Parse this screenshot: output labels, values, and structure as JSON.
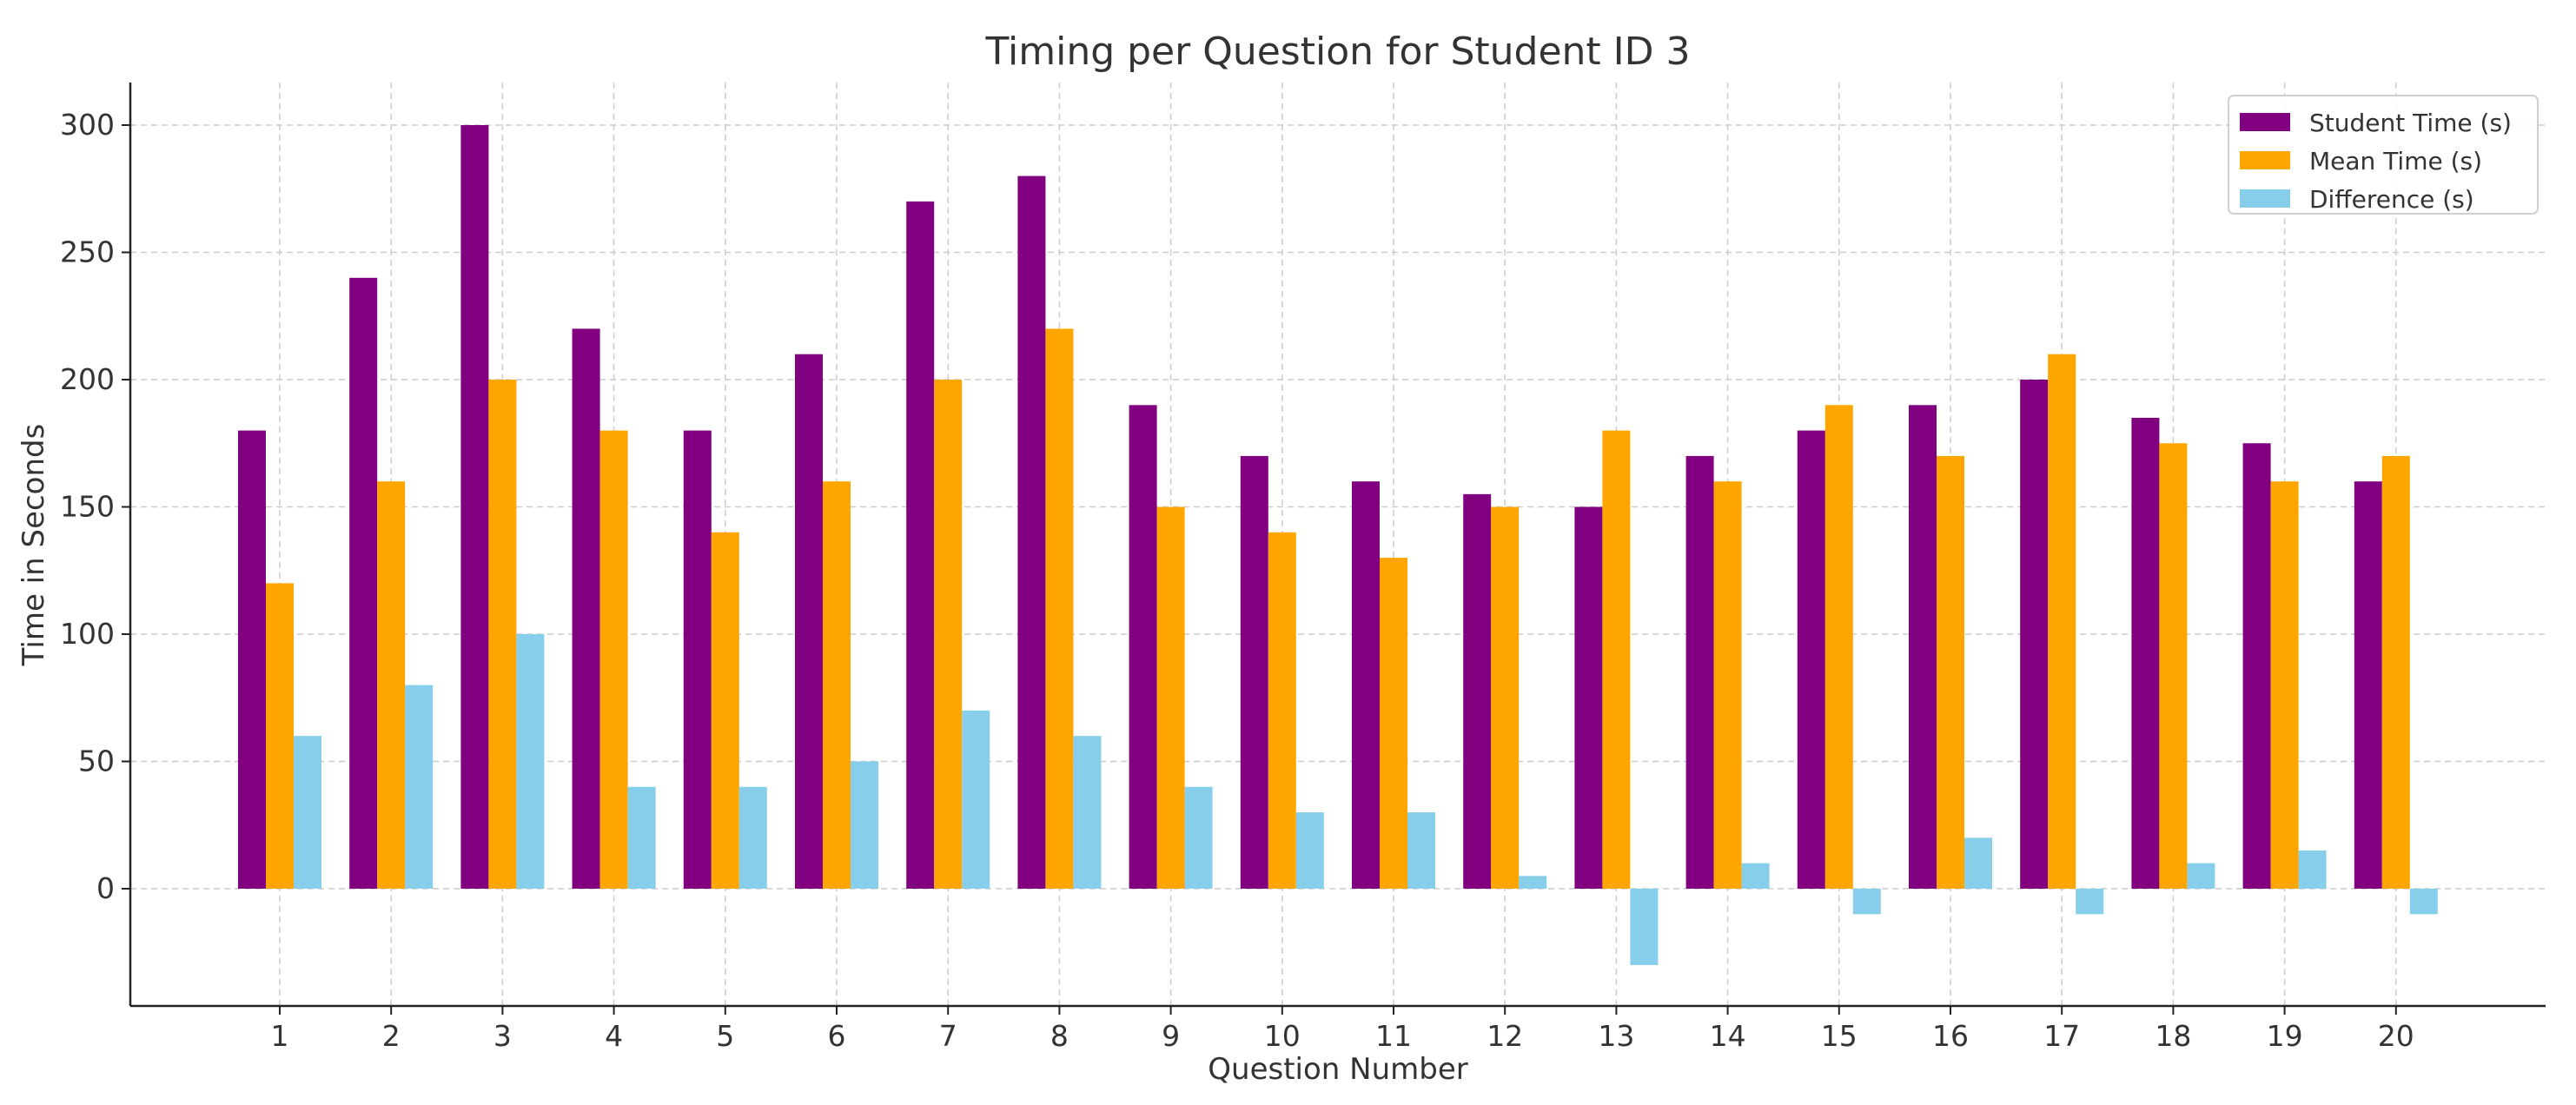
{
  "chart_data": {
    "type": "bar",
    "title": "Timing per Question for Student ID 3",
    "xlabel": "Question Number",
    "ylabel": "Time in Seconds",
    "categories": [
      "1",
      "2",
      "3",
      "4",
      "5",
      "6",
      "7",
      "8",
      "9",
      "10",
      "11",
      "12",
      "13",
      "14",
      "15",
      "16",
      "17",
      "18",
      "19",
      "20"
    ],
    "series": [
      {
        "name": "Student Time (s)",
        "color": "#800080",
        "values": [
          180,
          240,
          300,
          220,
          180,
          210,
          270,
          280,
          190,
          170,
          160,
          155,
          150,
          170,
          180,
          190,
          200,
          185,
          175,
          160
        ]
      },
      {
        "name": "Mean Time (s)",
        "color": "#FFA500",
        "values": [
          120,
          160,
          200,
          180,
          140,
          160,
          200,
          220,
          150,
          140,
          130,
          150,
          180,
          160,
          190,
          170,
          210,
          175,
          160,
          170
        ]
      },
      {
        "name": "Difference (s)",
        "color": "#87CEEB",
        "values": [
          60,
          80,
          100,
          40,
          40,
          50,
          70,
          60,
          40,
          30,
          30,
          5,
          -30,
          10,
          -10,
          20,
          -10,
          10,
          15,
          -10
        ]
      }
    ],
    "yticks": [
      0,
      50,
      100,
      150,
      200,
      250,
      300
    ],
    "ylim": [
      -46,
      316
    ],
    "grid": true,
    "legend_position": "top-right"
  }
}
